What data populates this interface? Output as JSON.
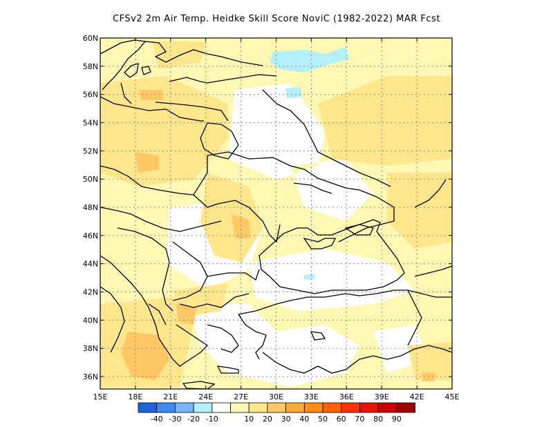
{
  "title": "CFSv2  2m Air Temp. Heidke Skill Score NoviC (1982-2022) MAR Fcst",
  "lat_ticks": [
    "60N",
    "58N",
    "56N",
    "54N",
    "52N",
    "50N",
    "48N",
    "46N",
    "44N",
    "42N",
    "40N",
    "38N",
    "36N"
  ],
  "lon_ticks": [
    "15E",
    "18E",
    "21E",
    "24E",
    "27E",
    "30E",
    "33E",
    "36E",
    "39E",
    "42E",
    "45E"
  ],
  "colorbar": {
    "colors": [
      "#1e64dc",
      "#3c8cf0",
      "#78b4f8",
      "#b4f0fa",
      "#ffffff",
      "#fff8b4",
      "#ffe68c",
      "#ffc864",
      "#ffaa3c",
      "#ff8c14",
      "#ff6400",
      "#ff3200",
      "#e61400",
      "#c80000",
      "#a00000"
    ],
    "labels": [
      "-40",
      "-30",
      "-20",
      "-10",
      "10",
      "20",
      "30",
      "40",
      "50",
      "60",
      "70",
      "80",
      "90"
    ]
  },
  "field_colors": {
    "light_yellow": "#fff8b4",
    "yellow": "#ffe68c",
    "orange": "#ffc864",
    "cyan": "#b4f0fa"
  }
}
